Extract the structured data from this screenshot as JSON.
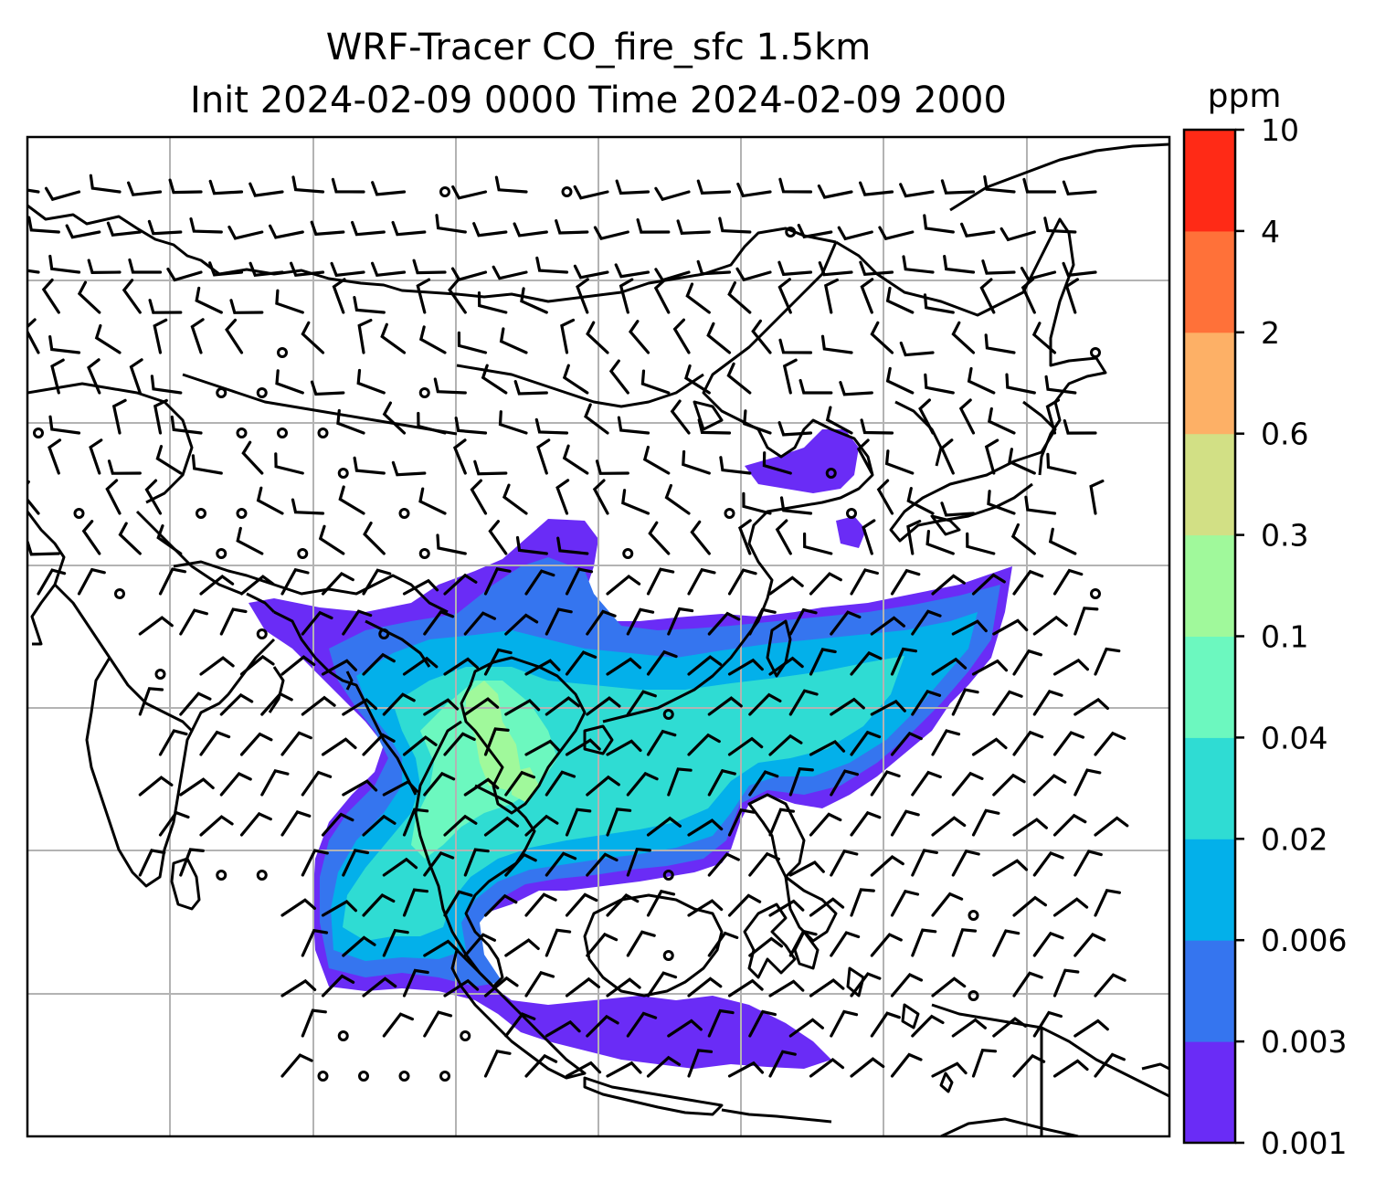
{
  "title": {
    "line1": "WRF-Tracer CO_fire_sfc 1.5km",
    "line2": "Init 2024-02-09 0000 Time 2024-02-09 2000"
  },
  "colorbar": {
    "unit": "ppm",
    "ticks": [
      "0.001",
      "0.003",
      "0.006",
      "0.02",
      "0.04",
      "0.1",
      "0.3",
      "0.6",
      "2",
      "4",
      "10"
    ],
    "colors": [
      "#6a2cf6",
      "#3575ef",
      "#03b0ea",
      "#2fdcd3",
      "#6cf8bf",
      "#a0f99b",
      "#d2e085",
      "#fdb066",
      "#ff7139",
      "#ff2a16"
    ]
  },
  "map": {
    "gridlines": true,
    "overlay": "wind barbs",
    "coastline_color": "#000000"
  }
}
